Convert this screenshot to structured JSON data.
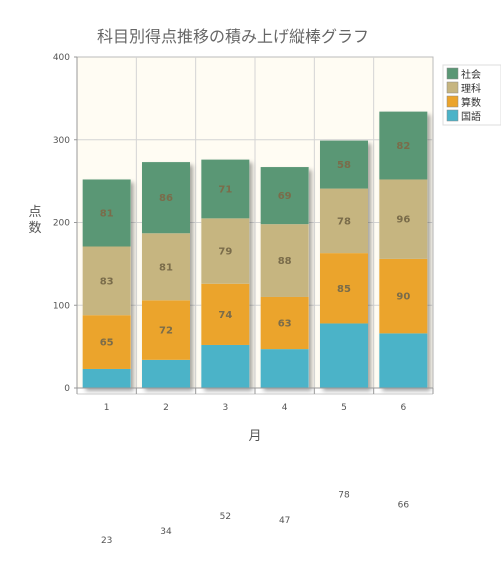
{
  "chart_data": {
    "type": "bar",
    "stacked": true,
    "title": "科目別得点推移の積み上げ縦棒グラフ",
    "xlabel": "月",
    "ylabel": "点数",
    "categories": [
      "1",
      "2",
      "3",
      "4",
      "5",
      "6"
    ],
    "ylim": [
      0,
      400
    ],
    "yticks": [
      0,
      100,
      200,
      300,
      400
    ],
    "grid": true,
    "legend_position": "right",
    "series": [
      {
        "name": "国語",
        "color": "#4bb3c8",
        "values": [
          23,
          34,
          52,
          47,
          78,
          66
        ]
      },
      {
        "name": "算数",
        "color": "#eba42c",
        "values": [
          65,
          72,
          74,
          63,
          85,
          90
        ]
      },
      {
        "name": "理科",
        "color": "#c6b580",
        "values": [
          83,
          81,
          79,
          88,
          78,
          96
        ]
      },
      {
        "name": "社会",
        "color": "#5a9775",
        "values": [
          81,
          86,
          71,
          69,
          58,
          82
        ]
      }
    ]
  }
}
